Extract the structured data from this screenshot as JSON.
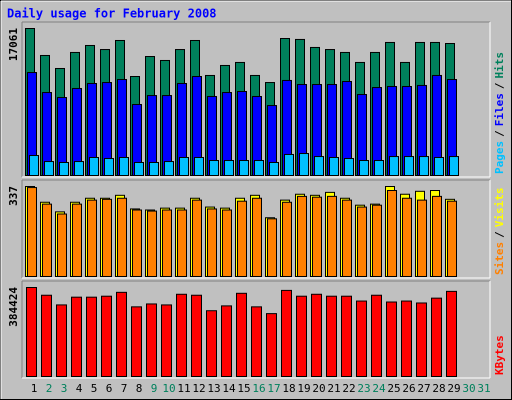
{
  "chart_data": [
    {
      "type": "bar",
      "title": "Daily usage for February 2008",
      "legend_separator": "/",
      "ylim": [
        0,
        17061
      ],
      "yticks": [
        17061
      ],
      "series": [
        {
          "name": "Pages",
          "color": "#00c0ff",
          "values": [
            2320,
            1620,
            1510,
            1620,
            2090,
            1970,
            2090,
            1510,
            1510,
            1620,
            2090,
            2090,
            1740,
            1740,
            1740,
            1740,
            1510,
            2440,
            2550,
            2200,
            2090,
            1970,
            1740,
            1740,
            2200,
            2200,
            2200,
            2090,
            2200,
            null,
            null
          ]
        },
        {
          "name": "Files",
          "color": "#0000ff",
          "values": [
            11950,
            9630,
            9050,
            10100,
            10680,
            10790,
            11140,
            8240,
            9280,
            9280,
            10680,
            11490,
            9170,
            9630,
            9750,
            9170,
            8120,
            11030,
            10560,
            10560,
            10560,
            10910,
            9400,
            10210,
            10330,
            10330,
            10450,
            11610,
            11140,
            null,
            null
          ]
        },
        {
          "name": "Hits",
          "color": "#00805c",
          "values": [
            17061,
            13930,
            12420,
            14280,
            15090,
            14620,
            15670,
            11490,
            13810,
            13350,
            14620,
            15670,
            11610,
            12770,
            13120,
            11610,
            10790,
            15900,
            15790,
            14860,
            14620,
            14280,
            13120,
            14280,
            15440,
            13120,
            15440,
            15440,
            15320,
            null,
            null
          ]
        }
      ]
    },
    {
      "type": "bar",
      "legend_separator": "/",
      "ylim": [
        0,
        337
      ],
      "yticks": [
        337
      ],
      "series": [
        {
          "name": "Sites",
          "color": "#ff8000",
          "values": [
            333,
            271,
            234,
            271,
            286,
            289,
            293,
            249,
            245,
            249,
            249,
            286,
            253,
            249,
            282,
            293,
            216,
            278,
            300,
            297,
            300,
            286,
            260,
            267,
            322,
            293,
            286,
            300,
            282,
            null,
            null
          ]
        },
        {
          "name": "Visits",
          "color": "#ffff00",
          "values": [
            337,
            278,
            242,
            278,
            293,
            293,
            304,
            253,
            249,
            256,
            256,
            293,
            260,
            256,
            293,
            304,
            220,
            286,
            308,
            304,
            315,
            293,
            267,
            271,
            337,
            308,
            319,
            322,
            289,
            null,
            null
          ]
        }
      ]
    },
    {
      "type": "bar",
      "ylim": [
        0,
        384424
      ],
      "yticks": [
        384424
      ],
      "categories": [
        "1",
        "2",
        "3",
        "4",
        "5",
        "6",
        "7",
        "8",
        "9",
        "10",
        "11",
        "12",
        "13",
        "14",
        "15",
        "16",
        "17",
        "18",
        "19",
        "20",
        "21",
        "22",
        "23",
        "24",
        "25",
        "26",
        "27",
        "28",
        "29",
        "30",
        "31"
      ],
      "category_colors": [
        "#000000",
        "#00805c",
        "#00805c",
        "#000000",
        "#000000",
        "#000000",
        "#000000",
        "#000000",
        "#00805c",
        "#00805c",
        "#000000",
        "#000000",
        "#000000",
        "#000000",
        "#000000",
        "#00805c",
        "#00805c",
        "#000000",
        "#000000",
        "#000000",
        "#000000",
        "#000000",
        "#00805c",
        "#00805c",
        "#000000",
        "#000000",
        "#000000",
        "#000000",
        "#000000",
        "#00805c",
        "#00805c"
      ],
      "series": [
        {
          "name": "KBytes",
          "color": "#ff0000",
          "values": [
            384424,
            351000,
            309210,
            342640,
            342640,
            346820,
            363530,
            300850,
            313390,
            309210,
            355170,
            351000,
            284140,
            305030,
            359350,
            300850,
            271600,
            371890,
            346820,
            355170,
            346820,
            346820,
            325920,
            351000,
            321740,
            325920,
            317570,
            338460,
            367710,
            null,
            null
          ]
        }
      ]
    }
  ]
}
